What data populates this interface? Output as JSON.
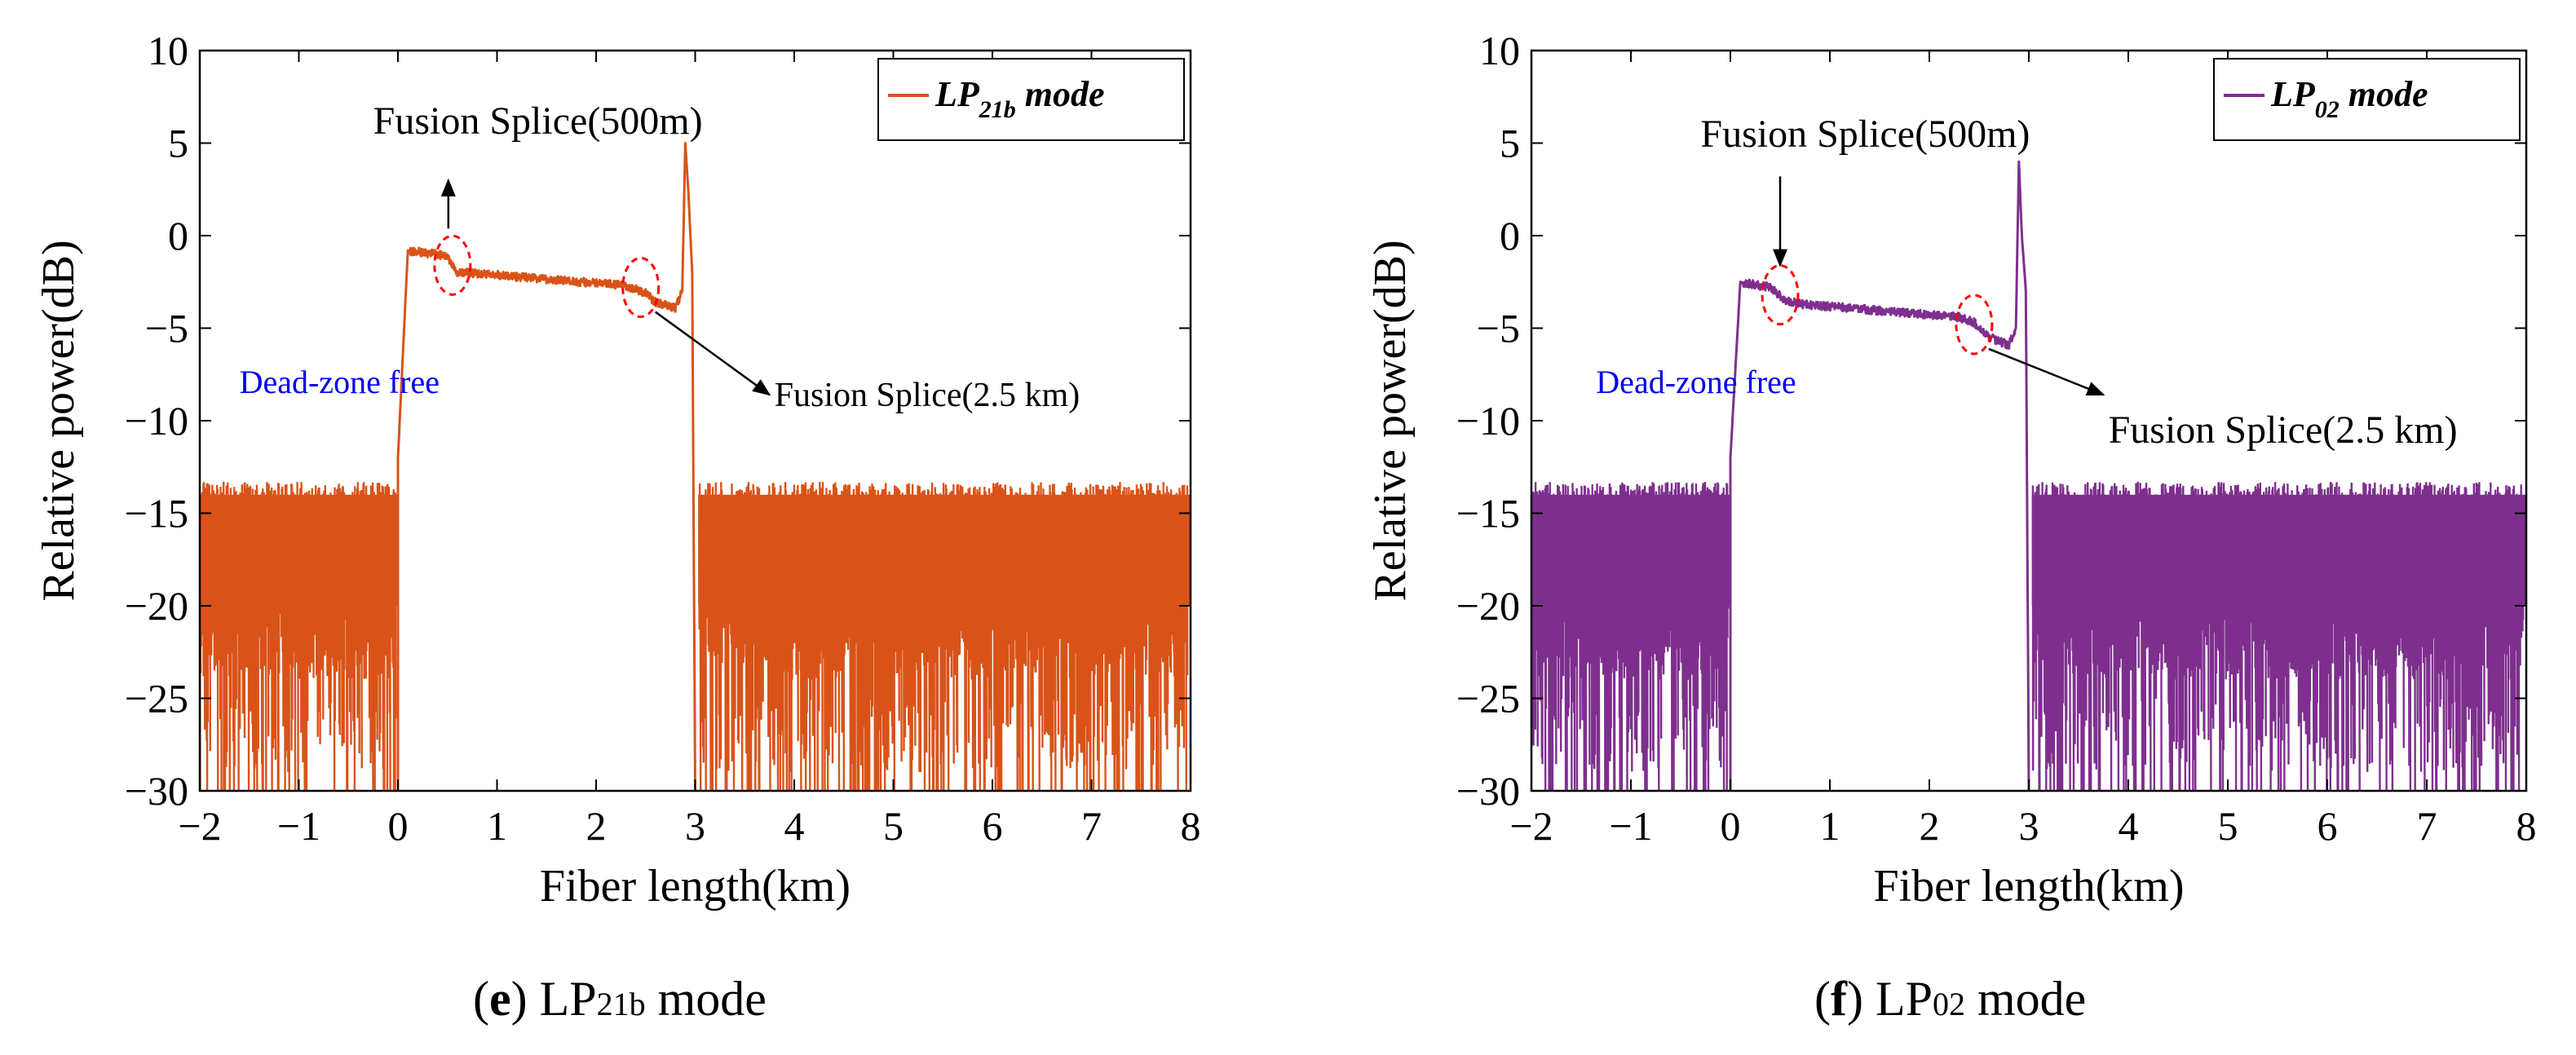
{
  "chart_data": [
    {
      "type": "line",
      "panel": "e",
      "color": "#d95319",
      "xlabel": "Fiber length(km)",
      "ylabel": "Relative power(dB)",
      "xlim": [
        -2,
        8
      ],
      "ylim": [
        -30,
        10
      ],
      "xticks": [
        "−2",
        "−1",
        "0",
        "1",
        "2",
        "3",
        "4",
        "5",
        "6",
        "7",
        "8"
      ],
      "yticks": [
        "10",
        "5",
        "0",
        "−5",
        "−10",
        "−15",
        "−20",
        "−25",
        "−30"
      ],
      "legend": {
        "prefix": "LP",
        "sub": "21b",
        "suffix": " mode",
        "location": "top-right"
      },
      "noise_floor_top": -14.5,
      "series": [
        {
          "name": "LP21b mode",
          "x": [
            0,
            0.1,
            0.5,
            0.6,
            0.7,
            2.3,
            2.5,
            2.6,
            2.8,
            2.87,
            2.9,
            2.93,
            2.97,
            3.0
          ],
          "y": [
            -12,
            -0.8,
            -1.1,
            -2.0,
            -2.0,
            -2.7,
            -3.1,
            -3.6,
            -3.9,
            -3.0,
            5.0,
            2.5,
            -2.0,
            -30
          ]
        }
      ],
      "annotations": [
        {
          "text": "Fusion Splice(500m)",
          "x": 0.55,
          "y": -1.6
        },
        {
          "text": "Fusion Splice(2.5 km)",
          "x": 2.45,
          "y": -2.8
        },
        {
          "text": "Dead-zone free"
        }
      ],
      "caption": {
        "letter": "e",
        "prefix": "LP",
        "sub": "21b",
        "suffix": " mode"
      }
    },
    {
      "type": "line",
      "panel": "f",
      "color": "#7e2f8e",
      "xlabel": "Fiber length(km)",
      "ylabel": "Relative power(dB)",
      "xlim": [
        -2,
        8
      ],
      "ylim": [
        -30,
        10
      ],
      "xticks": [
        "−2",
        "−1",
        "0",
        "1",
        "2",
        "3",
        "4",
        "5",
        "6",
        "7",
        "8"
      ],
      "yticks": [
        "10",
        "5",
        "0",
        "−5",
        "−10",
        "−15",
        "−20",
        "−25",
        "−30"
      ],
      "legend": {
        "prefix": "LP",
        "sub": "02",
        "suffix": " mode",
        "location": "top-right"
      },
      "noise_floor_top": -14.5,
      "series": [
        {
          "name": "LP02 mode",
          "x": [
            0,
            0.1,
            0.4,
            0.55,
            0.7,
            2.3,
            2.45,
            2.6,
            2.8,
            2.87,
            2.9,
            2.93,
            2.97,
            3.0
          ],
          "y": [
            -12,
            -2.5,
            -2.8,
            -3.5,
            -3.7,
            -4.4,
            -4.7,
            -5.5,
            -5.9,
            -5.0,
            4.0,
            0.0,
            -3.0,
            -30
          ]
        }
      ],
      "annotations": [
        {
          "text": "Fusion Splice(500m)",
          "x": 0.5,
          "y": -3.2
        },
        {
          "text": "Fusion Splice(2.5 km)",
          "x": 2.45,
          "y": -4.8
        },
        {
          "text": "Dead-zone free"
        }
      ],
      "caption": {
        "letter": "f",
        "prefix": "LP",
        "sub": "02",
        "suffix": " mode"
      }
    }
  ]
}
